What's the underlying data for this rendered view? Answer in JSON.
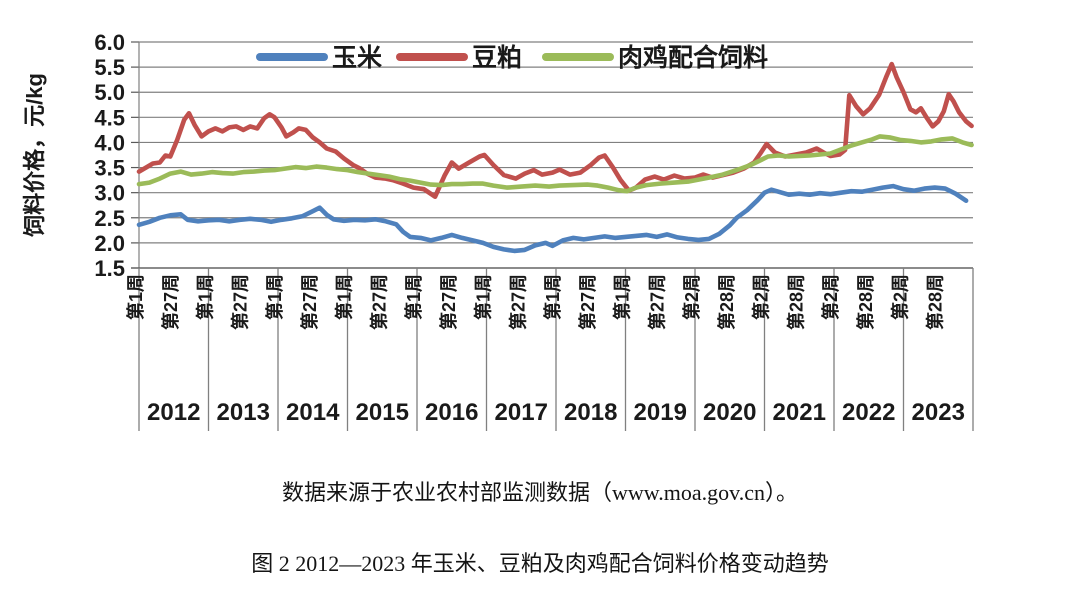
{
  "figure": {
    "source_note": "数据来源于农业农村部监测数据（www.moa.gov.cn）。",
    "caption": "图 2 2012—2023 年玉米、豆粕及肉鸡配合饲料价格变动趋势"
  },
  "chart_data": {
    "type": "line",
    "title": "",
    "ylabel": "饲料价格，元/kg",
    "xlabel": "",
    "ylim": [
      1.5,
      6.0
    ],
    "ytick_labels": [
      "6.0",
      "5.5",
      "5.0",
      "4.5",
      "4.0",
      "3.5",
      "3.0",
      "2.5",
      "2.0",
      "1.5"
    ],
    "grid": true,
    "legend_position": "top",
    "x_range_years": [
      2012,
      2024
    ],
    "week_tick_labels": [
      "第1周",
      "第27周",
      "第1周",
      "第27周",
      "第1周",
      "第27周",
      "第1周",
      "第27周",
      "第1周",
      "第27周",
      "第1周",
      "第27周",
      "第1周",
      "第27周",
      "第1周",
      "第27周",
      "第2周",
      "第28周",
      "第2周",
      "第28周",
      "第2周",
      "第28周",
      "第2周",
      "第28周"
    ],
    "year_labels": [
      "2012",
      "2013",
      "2014",
      "2015",
      "2016",
      "2017",
      "2018",
      "2019",
      "2020",
      "2021",
      "2022",
      "2023"
    ],
    "gridline_color": "#808080",
    "axis_color": "#595959",
    "series": [
      {
        "name": "玉米",
        "color": "#4F81BD",
        "points": [
          [
            2012.0,
            2.36
          ],
          [
            2012.15,
            2.42
          ],
          [
            2012.3,
            2.5
          ],
          [
            2012.45,
            2.55
          ],
          [
            2012.6,
            2.57
          ],
          [
            2012.7,
            2.46
          ],
          [
            2012.85,
            2.43
          ],
          [
            2013.0,
            2.45
          ],
          [
            2013.15,
            2.46
          ],
          [
            2013.3,
            2.43
          ],
          [
            2013.45,
            2.46
          ],
          [
            2013.6,
            2.48
          ],
          [
            2013.75,
            2.46
          ],
          [
            2013.9,
            2.42
          ],
          [
            2014.05,
            2.46
          ],
          [
            2014.2,
            2.49
          ],
          [
            2014.35,
            2.53
          ],
          [
            2014.5,
            2.63
          ],
          [
            2014.6,
            2.7
          ],
          [
            2014.7,
            2.56
          ],
          [
            2014.8,
            2.47
          ],
          [
            2014.95,
            2.44
          ],
          [
            2015.1,
            2.46
          ],
          [
            2015.25,
            2.45
          ],
          [
            2015.4,
            2.47
          ],
          [
            2015.55,
            2.43
          ],
          [
            2015.7,
            2.37
          ],
          [
            2015.8,
            2.22
          ],
          [
            2015.9,
            2.12
          ],
          [
            2016.05,
            2.1
          ],
          [
            2016.2,
            2.05
          ],
          [
            2016.35,
            2.1
          ],
          [
            2016.5,
            2.16
          ],
          [
            2016.65,
            2.1
          ],
          [
            2016.8,
            2.05
          ],
          [
            2016.95,
            2.0
          ],
          [
            2017.1,
            1.92
          ],
          [
            2017.25,
            1.87
          ],
          [
            2017.4,
            1.84
          ],
          [
            2017.55,
            1.86
          ],
          [
            2017.7,
            1.95
          ],
          [
            2017.85,
            2.0
          ],
          [
            2017.95,
            1.94
          ],
          [
            2018.1,
            2.05
          ],
          [
            2018.25,
            2.1
          ],
          [
            2018.4,
            2.07
          ],
          [
            2018.55,
            2.1
          ],
          [
            2018.7,
            2.13
          ],
          [
            2018.85,
            2.1
          ],
          [
            2019.0,
            2.12
          ],
          [
            2019.15,
            2.14
          ],
          [
            2019.3,
            2.16
          ],
          [
            2019.45,
            2.12
          ],
          [
            2019.6,
            2.17
          ],
          [
            2019.75,
            2.11
          ],
          [
            2019.9,
            2.08
          ],
          [
            2020.05,
            2.06
          ],
          [
            2020.2,
            2.08
          ],
          [
            2020.35,
            2.18
          ],
          [
            2020.5,
            2.35
          ],
          [
            2020.6,
            2.5
          ],
          [
            2020.75,
            2.65
          ],
          [
            2020.9,
            2.85
          ],
          [
            2021.0,
            3.0
          ],
          [
            2021.1,
            3.06
          ],
          [
            2021.2,
            3.02
          ],
          [
            2021.35,
            2.96
          ],
          [
            2021.5,
            2.98
          ],
          [
            2021.65,
            2.96
          ],
          [
            2021.8,
            2.99
          ],
          [
            2021.95,
            2.97
          ],
          [
            2022.1,
            3.0
          ],
          [
            2022.25,
            3.03
          ],
          [
            2022.4,
            3.02
          ],
          [
            2022.55,
            3.06
          ],
          [
            2022.7,
            3.1
          ],
          [
            2022.85,
            3.13
          ],
          [
            2023.0,
            3.07
          ],
          [
            2023.15,
            3.04
          ],
          [
            2023.3,
            3.08
          ],
          [
            2023.45,
            3.1
          ],
          [
            2023.6,
            3.08
          ],
          [
            2023.75,
            2.98
          ],
          [
            2023.9,
            2.84
          ]
        ]
      },
      {
        "name": "豆粕",
        "color": "#C0504D",
        "points": [
          [
            2012.0,
            3.42
          ],
          [
            2012.1,
            3.5
          ],
          [
            2012.2,
            3.58
          ],
          [
            2012.3,
            3.6
          ],
          [
            2012.38,
            3.74
          ],
          [
            2012.45,
            3.72
          ],
          [
            2012.55,
            4.05
          ],
          [
            2012.65,
            4.45
          ],
          [
            2012.72,
            4.58
          ],
          [
            2012.8,
            4.35
          ],
          [
            2012.9,
            4.12
          ],
          [
            2013.0,
            4.22
          ],
          [
            2013.1,
            4.28
          ],
          [
            2013.2,
            4.22
          ],
          [
            2013.3,
            4.3
          ],
          [
            2013.4,
            4.32
          ],
          [
            2013.5,
            4.25
          ],
          [
            2013.6,
            4.32
          ],
          [
            2013.7,
            4.28
          ],
          [
            2013.8,
            4.48
          ],
          [
            2013.88,
            4.56
          ],
          [
            2013.95,
            4.5
          ],
          [
            2014.05,
            4.3
          ],
          [
            2014.12,
            4.12
          ],
          [
            2014.22,
            4.2
          ],
          [
            2014.3,
            4.28
          ],
          [
            2014.4,
            4.25
          ],
          [
            2014.5,
            4.1
          ],
          [
            2014.6,
            4.0
          ],
          [
            2014.7,
            3.88
          ],
          [
            2014.83,
            3.82
          ],
          [
            2014.95,
            3.68
          ],
          [
            2015.08,
            3.55
          ],
          [
            2015.18,
            3.48
          ],
          [
            2015.28,
            3.38
          ],
          [
            2015.4,
            3.3
          ],
          [
            2015.55,
            3.28
          ],
          [
            2015.65,
            3.25
          ],
          [
            2015.8,
            3.18
          ],
          [
            2015.95,
            3.1
          ],
          [
            2016.1,
            3.07
          ],
          [
            2016.26,
            2.92
          ],
          [
            2016.4,
            3.35
          ],
          [
            2016.5,
            3.6
          ],
          [
            2016.6,
            3.48
          ],
          [
            2016.75,
            3.6
          ],
          [
            2016.9,
            3.72
          ],
          [
            2016.97,
            3.75
          ],
          [
            2017.1,
            3.55
          ],
          [
            2017.25,
            3.35
          ],
          [
            2017.42,
            3.28
          ],
          [
            2017.55,
            3.38
          ],
          [
            2017.68,
            3.45
          ],
          [
            2017.8,
            3.36
          ],
          [
            2017.95,
            3.4
          ],
          [
            2018.05,
            3.46
          ],
          [
            2018.2,
            3.36
          ],
          [
            2018.35,
            3.4
          ],
          [
            2018.5,
            3.55
          ],
          [
            2018.62,
            3.7
          ],
          [
            2018.7,
            3.74
          ],
          [
            2018.82,
            3.5
          ],
          [
            2018.93,
            3.25
          ],
          [
            2019.05,
            3.04
          ],
          [
            2019.15,
            3.1
          ],
          [
            2019.28,
            3.26
          ],
          [
            2019.42,
            3.32
          ],
          [
            2019.55,
            3.26
          ],
          [
            2019.7,
            3.34
          ],
          [
            2019.85,
            3.28
          ],
          [
            2020.0,
            3.3
          ],
          [
            2020.12,
            3.36
          ],
          [
            2020.25,
            3.3
          ],
          [
            2020.4,
            3.35
          ],
          [
            2020.55,
            3.4
          ],
          [
            2020.7,
            3.48
          ],
          [
            2020.85,
            3.6
          ],
          [
            2020.95,
            3.8
          ],
          [
            2021.03,
            3.97
          ],
          [
            2021.15,
            3.8
          ],
          [
            2021.3,
            3.72
          ],
          [
            2021.45,
            3.76
          ],
          [
            2021.6,
            3.8
          ],
          [
            2021.75,
            3.88
          ],
          [
            2021.85,
            3.8
          ],
          [
            2021.95,
            3.73
          ],
          [
            2022.08,
            3.76
          ],
          [
            2022.16,
            3.85
          ],
          [
            2022.22,
            4.94
          ],
          [
            2022.32,
            4.72
          ],
          [
            2022.42,
            4.56
          ],
          [
            2022.52,
            4.68
          ],
          [
            2022.65,
            4.95
          ],
          [
            2022.75,
            5.3
          ],
          [
            2022.83,
            5.56
          ],
          [
            2022.9,
            5.3
          ],
          [
            2023.0,
            5.0
          ],
          [
            2023.1,
            4.66
          ],
          [
            2023.18,
            4.6
          ],
          [
            2023.25,
            4.68
          ],
          [
            2023.33,
            4.5
          ],
          [
            2023.42,
            4.32
          ],
          [
            2023.5,
            4.42
          ],
          [
            2023.58,
            4.62
          ],
          [
            2023.65,
            4.96
          ],
          [
            2023.72,
            4.82
          ],
          [
            2023.8,
            4.6
          ],
          [
            2023.9,
            4.42
          ],
          [
            2023.98,
            4.33
          ]
        ]
      },
      {
        "name": "肉鸡配合饲料",
        "color": "#9BBB59",
        "points": [
          [
            2012.0,
            3.17
          ],
          [
            2012.15,
            3.2
          ],
          [
            2012.3,
            3.28
          ],
          [
            2012.45,
            3.38
          ],
          [
            2012.6,
            3.42
          ],
          [
            2012.75,
            3.36
          ],
          [
            2012.9,
            3.38
          ],
          [
            2013.05,
            3.41
          ],
          [
            2013.2,
            3.39
          ],
          [
            2013.35,
            3.38
          ],
          [
            2013.5,
            3.41
          ],
          [
            2013.65,
            3.42
          ],
          [
            2013.8,
            3.44
          ],
          [
            2013.95,
            3.45
          ],
          [
            2014.1,
            3.48
          ],
          [
            2014.25,
            3.51
          ],
          [
            2014.4,
            3.49
          ],
          [
            2014.55,
            3.52
          ],
          [
            2014.7,
            3.5
          ],
          [
            2014.85,
            3.47
          ],
          [
            2015.0,
            3.45
          ],
          [
            2015.15,
            3.41
          ],
          [
            2015.3,
            3.38
          ],
          [
            2015.45,
            3.35
          ],
          [
            2015.6,
            3.32
          ],
          [
            2015.75,
            3.27
          ],
          [
            2015.9,
            3.24
          ],
          [
            2016.05,
            3.2
          ],
          [
            2016.2,
            3.16
          ],
          [
            2016.35,
            3.15
          ],
          [
            2016.5,
            3.17
          ],
          [
            2016.65,
            3.17
          ],
          [
            2016.8,
            3.18
          ],
          [
            2016.95,
            3.18
          ],
          [
            2017.1,
            3.14
          ],
          [
            2017.3,
            3.1
          ],
          [
            2017.5,
            3.12
          ],
          [
            2017.7,
            3.14
          ],
          [
            2017.9,
            3.12
          ],
          [
            2018.05,
            3.14
          ],
          [
            2018.25,
            3.15
          ],
          [
            2018.45,
            3.16
          ],
          [
            2018.6,
            3.14
          ],
          [
            2018.75,
            3.1
          ],
          [
            2018.9,
            3.05
          ],
          [
            2019.02,
            3.03
          ],
          [
            2019.15,
            3.1
          ],
          [
            2019.3,
            3.15
          ],
          [
            2019.5,
            3.18
          ],
          [
            2019.7,
            3.2
          ],
          [
            2019.9,
            3.22
          ],
          [
            2020.05,
            3.26
          ],
          [
            2020.2,
            3.3
          ],
          [
            2020.4,
            3.36
          ],
          [
            2020.6,
            3.45
          ],
          [
            2020.8,
            3.55
          ],
          [
            2020.95,
            3.65
          ],
          [
            2021.05,
            3.72
          ],
          [
            2021.2,
            3.74
          ],
          [
            2021.35,
            3.72
          ],
          [
            2021.5,
            3.73
          ],
          [
            2021.65,
            3.74
          ],
          [
            2021.8,
            3.76
          ],
          [
            2021.95,
            3.78
          ],
          [
            2022.1,
            3.86
          ],
          [
            2022.25,
            3.94
          ],
          [
            2022.4,
            4.0
          ],
          [
            2022.55,
            4.06
          ],
          [
            2022.66,
            4.12
          ],
          [
            2022.8,
            4.1
          ],
          [
            2022.95,
            4.05
          ],
          [
            2023.1,
            4.03
          ],
          [
            2023.25,
            4.0
          ],
          [
            2023.4,
            4.02
          ],
          [
            2023.55,
            4.06
          ],
          [
            2023.7,
            4.08
          ],
          [
            2023.85,
            4.0
          ],
          [
            2023.98,
            3.95
          ]
        ]
      }
    ]
  }
}
